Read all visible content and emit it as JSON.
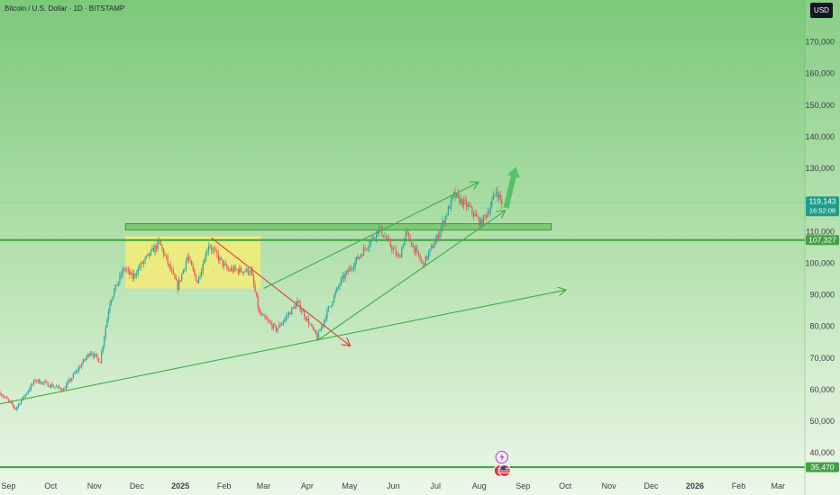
{
  "header": {
    "title": "Bitcoin / U.S. Dollar · 1D · BITSTAMP",
    "currency": "USD"
  },
  "colors": {
    "up": "#26a69a",
    "down": "#ef5350",
    "trend_green": "#3cb043",
    "trend_red": "#e53935",
    "zone_yellow": "#f4ec78",
    "resistance_band": "#56b84e",
    "bg_top": "#7cc97a",
    "bg_bottom": "#ecf7e8",
    "tag_price": "#1f9d8a",
    "tag_level": "#43a047"
  },
  "price_tags": {
    "last": "119,143",
    "countdown": "16:52:08",
    "support": "107,327",
    "low": "35,470"
  },
  "events": {
    "top_icon": "lightning-bolt-icon",
    "bottom_icon": "us-flag-icon"
  },
  "chart_data": {
    "type": "candlestick",
    "title": "Bitcoin / U.S. Dollar · 1D · BITSTAMP",
    "xlabel": "",
    "ylabel": "",
    "x_range": [
      "2024-08-26",
      "2026-03-20"
    ],
    "ylim": [
      33500,
      179000
    ],
    "y_ticks": [
      40000,
      50000,
      60000,
      70000,
      80000,
      90000,
      100000,
      110000,
      120000,
      130000,
      140000,
      150000,
      160000,
      170000
    ],
    "y_tick_labels": [
      "40,000",
      "50,000",
      "60,000",
      "70,000",
      "80,000",
      "90,000",
      "100,000",
      "110,000",
      "120,000",
      "130,000",
      "140,000",
      "150,000",
      "160,000",
      "170,000"
    ],
    "x_ticks": [
      {
        "label": "Sep",
        "date": "2024-09-01"
      },
      {
        "label": "Oct",
        "date": "2024-10-01"
      },
      {
        "label": "Nov",
        "date": "2024-11-01"
      },
      {
        "label": "Dec",
        "date": "2024-12-01"
      },
      {
        "label": "2025",
        "date": "2025-01-01",
        "bold": true
      },
      {
        "label": "Feb",
        "date": "2025-02-01"
      },
      {
        "label": "Mar",
        "date": "2025-03-01"
      },
      {
        "label": "Apr",
        "date": "2025-04-01"
      },
      {
        "label": "May",
        "date": "2025-05-01"
      },
      {
        "label": "Jun",
        "date": "2025-06-01"
      },
      {
        "label": "Jul",
        "date": "2025-07-01"
      },
      {
        "label": "Aug",
        "date": "2025-08-01"
      },
      {
        "label": "Sep",
        "date": "2025-09-01"
      },
      {
        "label": "Oct",
        "date": "2025-10-01"
      },
      {
        "label": "Nov",
        "date": "2025-11-01"
      },
      {
        "label": "Dec",
        "date": "2025-12-01"
      },
      {
        "label": "2026",
        "date": "2026-01-01",
        "bold": true
      },
      {
        "label": "Feb",
        "date": "2026-02-01"
      },
      {
        "label": "Mar",
        "date": "2026-03-01"
      }
    ],
    "grid": false,
    "price_path": [
      {
        "date": "2024-08-26",
        "close": 59000
      },
      {
        "date": "2024-09-06",
        "close": 54000
      },
      {
        "date": "2024-09-20",
        "close": 63000
      },
      {
        "date": "2024-10-10",
        "close": 60000
      },
      {
        "date": "2024-10-29",
        "close": 72000
      },
      {
        "date": "2024-11-05",
        "close": 69000
      },
      {
        "date": "2024-11-12",
        "close": 88000
      },
      {
        "date": "2024-11-22",
        "close": 98500
      },
      {
        "date": "2024-11-28",
        "close": 95500
      },
      {
        "date": "2024-12-05",
        "close": 100000
      },
      {
        "date": "2024-12-17",
        "close": 106500
      },
      {
        "date": "2024-12-30",
        "close": 92500
      },
      {
        "date": "2025-01-06",
        "close": 102000
      },
      {
        "date": "2025-01-13",
        "close": 94000
      },
      {
        "date": "2025-01-21",
        "close": 106000
      },
      {
        "date": "2025-02-03",
        "close": 98000
      },
      {
        "date": "2025-02-20",
        "close": 97500
      },
      {
        "date": "2025-02-26",
        "close": 84000
      },
      {
        "date": "2025-03-10",
        "close": 79000
      },
      {
        "date": "2025-03-25",
        "close": 87500
      },
      {
        "date": "2025-04-08",
        "close": 76500
      },
      {
        "date": "2025-04-15",
        "close": 84500
      },
      {
        "date": "2025-04-25",
        "close": 94500
      },
      {
        "date": "2025-05-10",
        "close": 103500
      },
      {
        "date": "2025-05-22",
        "close": 111000
      },
      {
        "date": "2025-06-05",
        "close": 101500
      },
      {
        "date": "2025-06-10",
        "close": 109500
      },
      {
        "date": "2025-06-22",
        "close": 99500
      },
      {
        "date": "2025-07-02",
        "close": 108000
      },
      {
        "date": "2025-07-14",
        "close": 121500
      },
      {
        "date": "2025-07-25",
        "close": 117500
      },
      {
        "date": "2025-08-02",
        "close": 112500
      },
      {
        "date": "2025-08-08",
        "close": 117000
      },
      {
        "date": "2025-08-13",
        "close": 123000
      },
      {
        "date": "2025-08-17",
        "close": 119143
      }
    ],
    "annotations": {
      "consolidation_box": {
        "x1": "2024-11-23",
        "x2": "2025-02-27",
        "y1": 92000,
        "y2": 108500
      },
      "resistance_band": {
        "x1": "2024-11-23",
        "x2": "2025-09-21",
        "y1": 110500,
        "y2": 112500
      },
      "horizontal_support": {
        "y": 107327
      },
      "bottom_level": {
        "y": 35470
      },
      "trendlines": [
        {
          "name": "long-term-support",
          "x1": "2024-08-26",
          "y1": 55500,
          "x2": "2025-10-01",
          "y2": 91500,
          "arrow": true,
          "color": "green"
        },
        {
          "name": "downtrend",
          "x1": "2025-01-23",
          "y1": 108000,
          "x2": "2025-05-01",
          "y2": 74000,
          "arrow": true,
          "color": "red"
        },
        {
          "name": "channel-upper",
          "x1": "2025-03-01",
          "y1": 92000,
          "x2": "2025-07-31",
          "y2": 125500,
          "arrow": true,
          "color": "green"
        },
        {
          "name": "channel-lower",
          "x1": "2025-04-08",
          "y1": 75500,
          "x2": "2025-08-19",
          "y2": 116500,
          "arrow": true,
          "color": "green"
        }
      ],
      "projection_arrow": {
        "x1": "2025-08-20",
        "y1": 117500,
        "x2": "2025-08-27",
        "y2": 130500
      }
    }
  }
}
